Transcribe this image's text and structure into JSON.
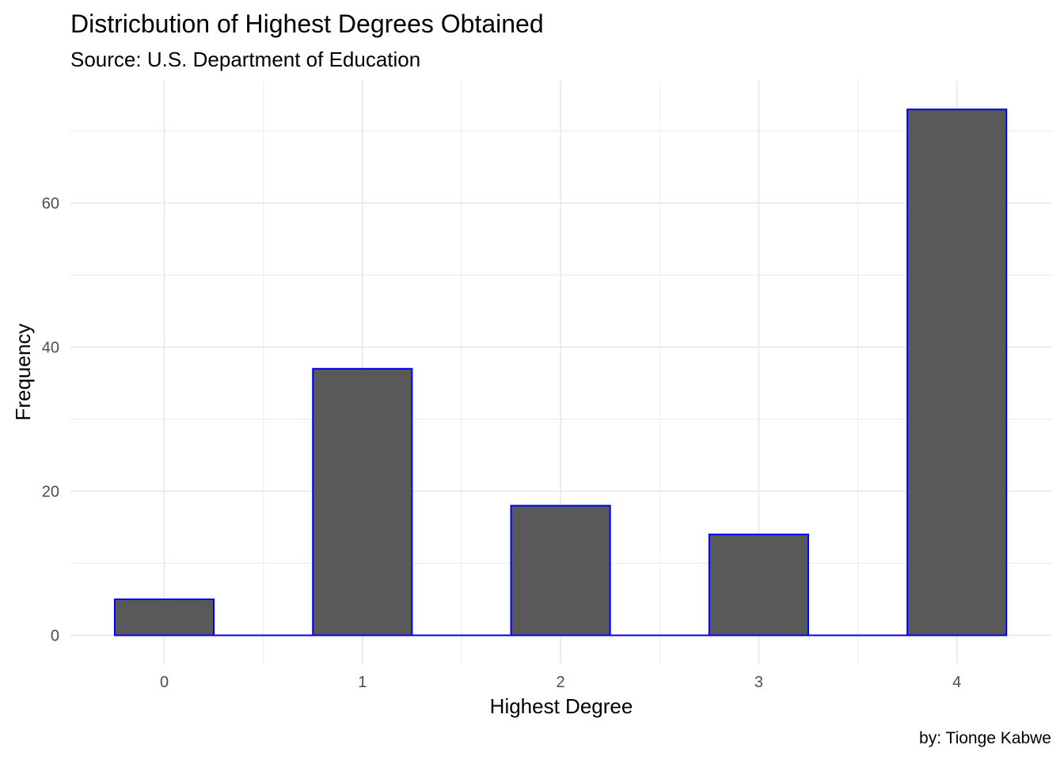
{
  "chart_data": {
    "type": "bar",
    "title": "Districbution of Highest Degrees Obtained",
    "subtitle": "Source: U.S. Department of Education",
    "caption": "by: Tionge Kabwe",
    "xlabel": "Highest Degree",
    "ylabel": "Frequency",
    "categories": [
      0,
      1,
      2,
      3,
      4
    ],
    "values": [
      5,
      37,
      18,
      14,
      73
    ],
    "x_ticks": [
      0,
      1,
      2,
      3,
      4
    ],
    "y_ticks": [
      0,
      20,
      40,
      60
    ],
    "xlim": [
      -0.47,
      4.47
    ],
    "ylim": [
      0,
      76
    ],
    "bar_width": 0.5,
    "bar_fill": "#595959",
    "bar_outline": "#0000ff",
    "grid": true,
    "grid_color": "#ebebeb",
    "background": "#ffffff",
    "legend": "none"
  }
}
